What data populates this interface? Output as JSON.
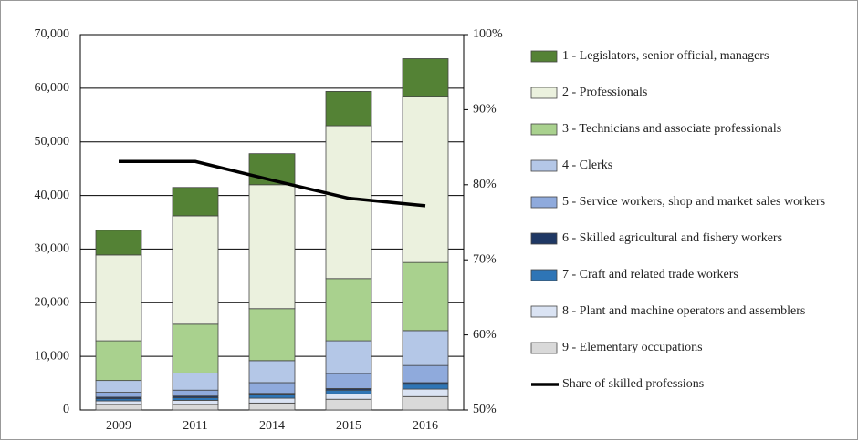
{
  "chart_data": {
    "type": "bar",
    "stacked": true,
    "categories": [
      "2009",
      "2011",
      "2014",
      "2015",
      "2016"
    ],
    "series": [
      {
        "name": "1 - Legislators, senior official, managers",
        "color": "#548235",
        "values": [
          4600,
          5300,
          5800,
          6400,
          7000
        ]
      },
      {
        "name": "2 - Professionals",
        "color": "#ebf1de",
        "values": [
          16000,
          20200,
          23100,
          28500,
          31000
        ]
      },
      {
        "name": "3 - Technicians and associate professionals",
        "color": "#a9d18e",
        "values": [
          7400,
          9100,
          9700,
          11600,
          12700
        ]
      },
      {
        "name": "4 - Clerks",
        "color": "#b4c7e7",
        "values": [
          2200,
          3200,
          4100,
          6100,
          6500
        ]
      },
      {
        "name": "5 - Service workers, shop and market sales workers",
        "color": "#8faadc",
        "values": [
          900,
          1100,
          2000,
          2800,
          3200
        ]
      },
      {
        "name": "6 - Skilled agricultural and fishery workers",
        "color": "#1f3864",
        "values": [
          300,
          300,
          300,
          300,
          300
        ]
      },
      {
        "name": "7 - Craft and related trade workers",
        "color": "#2e75b6",
        "values": [
          400,
          500,
          600,
          700,
          900
        ]
      },
      {
        "name": "8 - Plant and machine operators and assemblers",
        "color": "#dae3f3",
        "values": [
          700,
          800,
          900,
          1000,
          1400
        ]
      },
      {
        "name": "9 - Elementary occupations",
        "color": "#d9d9d9",
        "values": [
          1000,
          1000,
          1300,
          2000,
          2500
        ]
      },
      {
        "name": "Share of skilled professions",
        "color": "#000000",
        "axis": "y2",
        "values": [
          83.1,
          83.1,
          80.6,
          78.2,
          77.2
        ]
      }
    ],
    "ylim": [
      0,
      70000
    ],
    "yticks": [
      0,
      {
        "value": 10000,
        "label": "10,000"
      },
      {
        "value": 20000,
        "label": "20,000"
      },
      {
        "value": 30000,
        "label": "30,000"
      },
      {
        "value": 40000,
        "label": "40,000"
      },
      {
        "value": 50000,
        "label": "50,000"
      },
      {
        "value": 60000,
        "label": "60,000"
      },
      {
        "value": 70000,
        "label": "70,000"
      }
    ],
    "y2lim": [
      50,
      100
    ],
    "y2ticks": [
      {
        "value": 50,
        "label": "50%"
      },
      {
        "value": 60,
        "label": "60%"
      },
      {
        "value": 70,
        "label": "70%"
      },
      {
        "value": 80,
        "label": "80%"
      },
      {
        "value": 90,
        "label": "90%"
      },
      {
        "value": 100,
        "label": "100%"
      }
    ],
    "grid": true
  }
}
